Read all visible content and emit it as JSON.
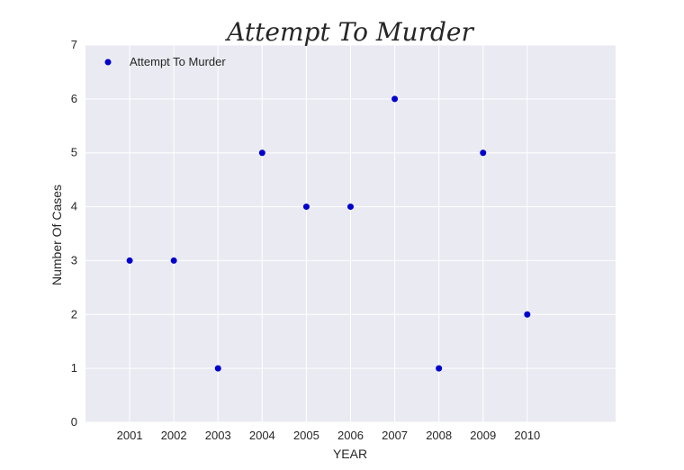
{
  "chart_data": {
    "type": "scatter",
    "title": "Attempt To Murder",
    "xlabel": "YEAR",
    "ylabel": "Number Of Cases",
    "x": [
      2001,
      2002,
      2003,
      2004,
      2005,
      2006,
      2007,
      2008,
      2009,
      2010
    ],
    "x_tick_labels": [
      "2001",
      "2002",
      "2003",
      "2004",
      "2005",
      "2006",
      "2007",
      "2008",
      "2009",
      "2010"
    ],
    "xlim": [
      2000,
      2012
    ],
    "ylim": [
      0,
      7
    ],
    "y_ticks": [
      0,
      1,
      2,
      3,
      4,
      5,
      6,
      7
    ],
    "series": [
      {
        "name": "Attempt To Murder",
        "color": "#0000cc",
        "values": [
          3,
          3,
          1,
          5,
          4,
          4,
          6,
          1,
          5,
          2
        ]
      }
    ],
    "legend_position": "top-left",
    "grid": true,
    "plot_background": "#eaeaf2",
    "grid_color": "#ffffff"
  }
}
